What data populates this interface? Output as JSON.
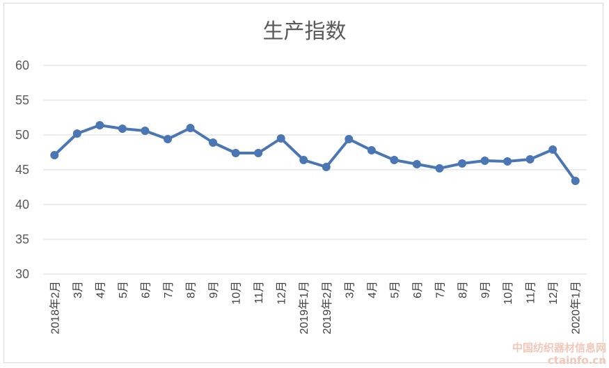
{
  "chart_data": {
    "type": "line",
    "title": "生产指数",
    "xlabel": "",
    "ylabel": "",
    "ylim": [
      30,
      60
    ],
    "yticks": [
      "30",
      "35",
      "40",
      "45",
      "50",
      "55",
      "60"
    ],
    "grid": "horizontal",
    "legend": "none",
    "categories": [
      "2018年2月",
      "3月",
      "4月",
      "5月",
      "6月",
      "7月",
      "8月",
      "9月",
      "10月",
      "11月",
      "12月",
      "2019年1月",
      "2019年2月",
      "3月",
      "4月",
      "5月",
      "6月",
      "7月",
      "8月",
      "9月",
      "10月",
      "11月",
      "12月",
      "2020年1月"
    ],
    "series": [
      {
        "values": [
          47.1,
          50.2,
          51.4,
          50.9,
          50.6,
          49.4,
          51.0,
          48.9,
          47.4,
          47.4,
          49.5,
          46.4,
          45.4,
          49.4,
          47.8,
          46.4,
          45.8,
          45.2,
          45.9,
          46.3,
          46.2,
          46.5,
          47.9,
          43.4
        ]
      }
    ],
    "colors": {
      "line": "#4a76b4",
      "grid": "#d9d9d9",
      "text": "#595959"
    }
  },
  "watermark": {
    "line1": "中国纺织器材信息网",
    "line2": "ctainfo.cn"
  }
}
